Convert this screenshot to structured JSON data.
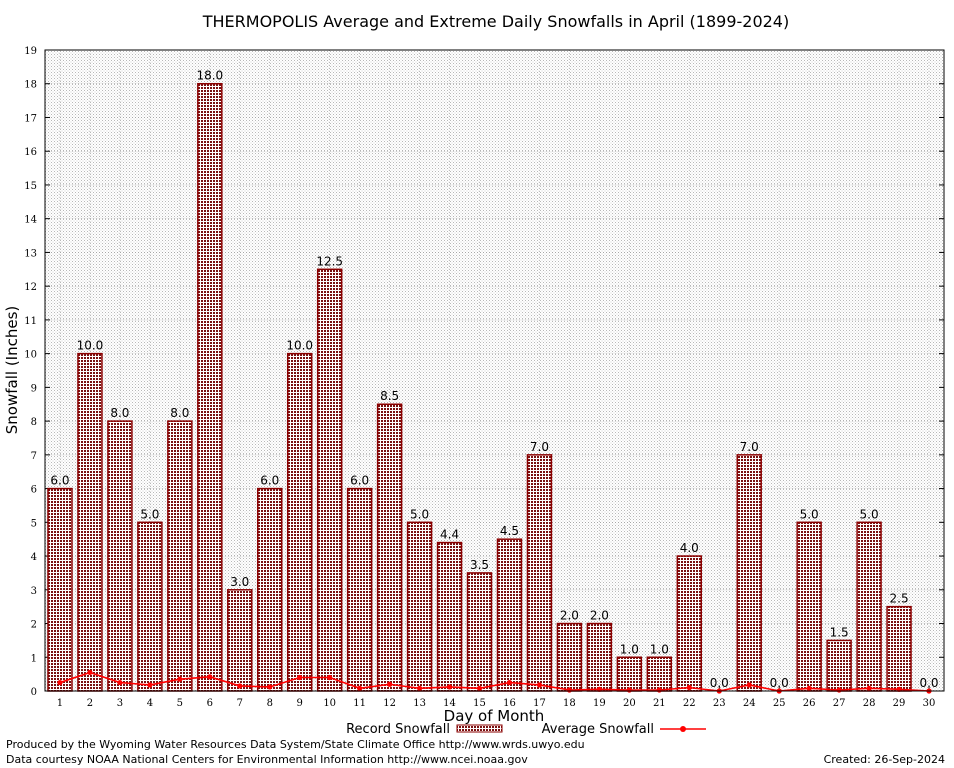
{
  "chart_data": {
    "type": "bar",
    "title": "THERMOPOLIS Average and Extreme Daily Snowfalls in April (1899-2024)",
    "xlabel": "Day of Month",
    "ylabel": "Snowfall (Inches)",
    "ylim": [
      0,
      19
    ],
    "yticks": [
      "0",
      "1",
      "2",
      "3",
      "4",
      "5",
      "6",
      "7",
      "8",
      "9",
      "10",
      "11",
      "12",
      "13",
      "14",
      "15",
      "16",
      "17",
      "18",
      "19"
    ],
    "grid": true,
    "legend_position": "bottom",
    "categories": [
      "1",
      "2",
      "3",
      "4",
      "5",
      "6",
      "7",
      "8",
      "9",
      "10",
      "11",
      "12",
      "13",
      "14",
      "15",
      "16",
      "17",
      "18",
      "19",
      "20",
      "21",
      "22",
      "23",
      "24",
      "25",
      "26",
      "27",
      "28",
      "29",
      "30"
    ],
    "series": [
      {
        "name": "Record Snowfall",
        "kind": "bar",
        "color": "#8b0000",
        "values": [
          6.0,
          10.0,
          8.0,
          5.0,
          8.0,
          18.0,
          3.0,
          6.0,
          10.0,
          12.5,
          6.0,
          8.5,
          5.0,
          4.4,
          3.5,
          4.5,
          7.0,
          2.0,
          2.0,
          1.0,
          1.0,
          4.0,
          0.0,
          7.0,
          0.0,
          5.0,
          1.5,
          5.0,
          2.5,
          0.0
        ],
        "labels": [
          "6.0",
          "10.0",
          "8.0",
          "5.0",
          "8.0",
          "18.0",
          "3.0",
          "6.0",
          "10.0",
          "12.5",
          "6.0",
          "8.5",
          "5.0",
          "4.4",
          "3.5",
          "4.5",
          "7.0",
          "2.0",
          "2.0",
          "1.0",
          "1.0",
          "4.0",
          "0.0",
          "7.0",
          "0.0",
          "5.0",
          "1.5",
          "5.0",
          "2.5",
          "0.0"
        ]
      },
      {
        "name": "Average Snowfall",
        "kind": "line",
        "color": "#ff0000",
        "values": [
          0.25,
          0.55,
          0.25,
          0.18,
          0.35,
          0.42,
          0.15,
          0.12,
          0.4,
          0.4,
          0.08,
          0.2,
          0.08,
          0.12,
          0.08,
          0.25,
          0.18,
          0.03,
          0.05,
          0.03,
          0.03,
          0.1,
          0.0,
          0.18,
          0.0,
          0.08,
          0.03,
          0.08,
          0.05,
          0.0
        ]
      }
    ]
  },
  "footer": {
    "produced_by": "Produced by the Wyoming Water Resources Data System/State Climate Office http://www.wrds.uwyo.edu",
    "data_courtesy": "Data courtesy NOAA National Centers for Environmental Information http://www.ncei.noaa.gov",
    "created": "Created: 26-Sep-2024"
  }
}
